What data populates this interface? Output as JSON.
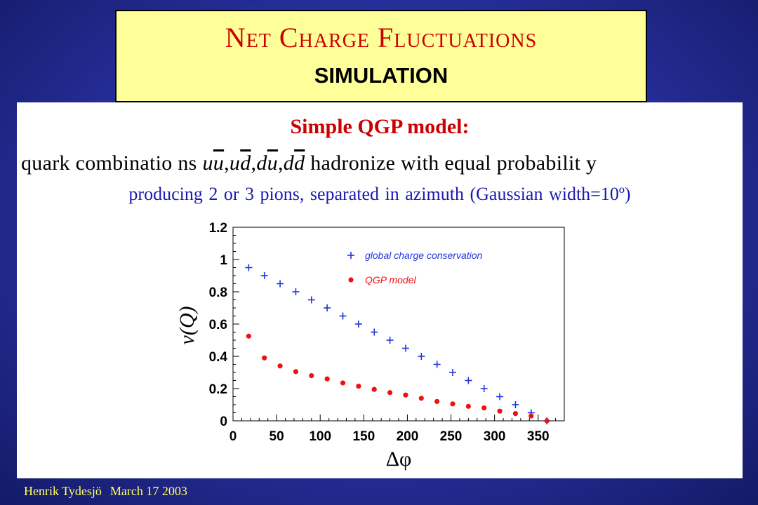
{
  "title": {
    "first_letters": [
      "N",
      "C",
      "F"
    ],
    "words": [
      "et",
      "harge",
      "luctuations"
    ],
    "subtitle": "SIMULATION"
  },
  "model_heading": "Simple QGP model:",
  "quark_line": {
    "prefix": "quark combinatio ns",
    "combinations": [
      {
        "a": "u",
        "b": "u"
      },
      {
        "a": "u",
        "b": "d"
      },
      {
        "a": "d",
        "b": "u"
      },
      {
        "a": "d",
        "b": "d"
      }
    ],
    "suffix": "hadronize  with equal probabilit y"
  },
  "pion_line": "producing 2 or 3 pions, separated in azimuth (Gaussian width=10º)",
  "footer": {
    "author": "Henrik Tydesjö",
    "date": "March 17 2003"
  },
  "colors": {
    "global": "#2233dd",
    "qgp": "#ee1111",
    "title": "#cc0000",
    "title_bg": "#ffff99",
    "footer": "#ffff66"
  },
  "chart_data": {
    "type": "scatter",
    "xlabel": "Δφ",
    "ylabel": "ν(Q)",
    "xlim": [
      0,
      380
    ],
    "ylim": [
      0,
      1.2
    ],
    "xticks": [
      0,
      50,
      100,
      150,
      200,
      250,
      300,
      350
    ],
    "yticks": [
      0,
      0.2,
      0.4,
      0.6,
      0.8,
      1,
      1.2
    ],
    "legend_position": "top-right",
    "series": [
      {
        "name": "global charge conservation",
        "marker": "cross",
        "color": "#2233dd",
        "x": [
          18,
          36,
          54,
          72,
          90,
          108,
          126,
          144,
          162,
          180,
          198,
          216,
          234,
          252,
          270,
          288,
          306,
          324,
          342,
          360
        ],
        "y": [
          0.95,
          0.9,
          0.85,
          0.8,
          0.75,
          0.7,
          0.65,
          0.6,
          0.55,
          0.5,
          0.45,
          0.4,
          0.35,
          0.3,
          0.25,
          0.2,
          0.15,
          0.1,
          0.05,
          0.0
        ]
      },
      {
        "name": "QGP model",
        "marker": "dot",
        "color": "#ee1111",
        "x": [
          18,
          36,
          54,
          72,
          90,
          108,
          126,
          144,
          162,
          180,
          198,
          216,
          234,
          252,
          270,
          288,
          306,
          324,
          342,
          360
        ],
        "y": [
          0.525,
          0.39,
          0.34,
          0.305,
          0.28,
          0.26,
          0.235,
          0.215,
          0.195,
          0.175,
          0.16,
          0.14,
          0.12,
          0.105,
          0.09,
          0.08,
          0.06,
          0.045,
          0.03,
          0.0
        ]
      }
    ]
  }
}
